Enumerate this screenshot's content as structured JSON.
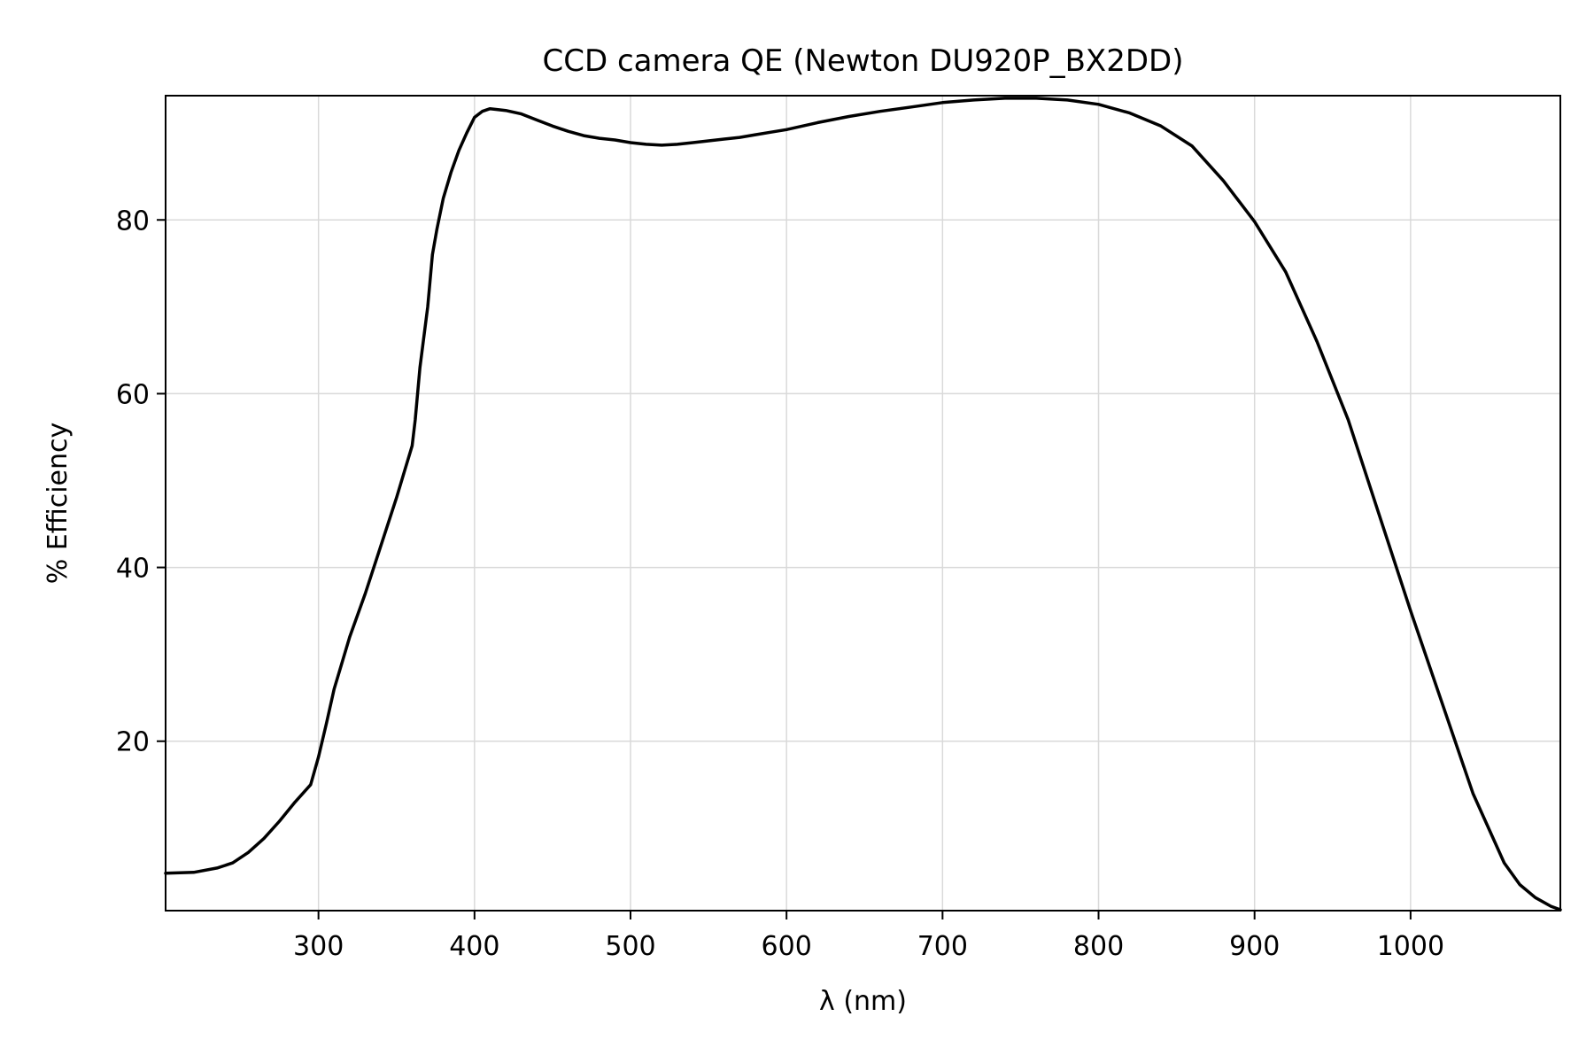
{
  "chart_data": {
    "type": "line",
    "title": "CCD camera QE (Newton DU920P_BX2DD)",
    "xlabel": "λ (nm)",
    "ylabel": "% Efficiency",
    "xlim": [
      202,
      1096
    ],
    "ylim": [
      0.5,
      94.3
    ],
    "grid": true,
    "xticks": [
      300,
      400,
      500,
      600,
      700,
      800,
      900,
      1000
    ],
    "yticks": [
      20,
      40,
      60,
      80
    ],
    "line_color": "#000000",
    "grid_color": "#d9d9d9",
    "series": [
      {
        "x": [
          202,
          220,
          235,
          245,
          255,
          265,
          275,
          285,
          295,
          300,
          305,
          310,
          315,
          320,
          330,
          340,
          350,
          355,
          360,
          362,
          365,
          370,
          373,
          376,
          380,
          385,
          390,
          395,
          400,
          405,
          410,
          420,
          430,
          440,
          450,
          460,
          470,
          480,
          490,
          500,
          510,
          520,
          530,
          540,
          550,
          560,
          570,
          580,
          590,
          600,
          620,
          640,
          660,
          680,
          700,
          720,
          740,
          760,
          780,
          800,
          820,
          840,
          860,
          880,
          900,
          920,
          940,
          960,
          980,
          1000,
          1020,
          1040,
          1060,
          1070,
          1080,
          1090,
          1096
        ],
        "y": [
          4.8,
          4.9,
          5.4,
          6.0,
          7.2,
          8.8,
          10.8,
          13.0,
          15.0,
          18.2,
          22.0,
          26.0,
          29.0,
          32.0,
          37.0,
          42.5,
          48.0,
          51.0,
          54.0,
          57.0,
          63.0,
          70.0,
          76.0,
          79.0,
          82.5,
          85.5,
          88.0,
          90.0,
          91.8,
          92.5,
          92.8,
          92.6,
          92.2,
          91.5,
          90.8,
          90.2,
          89.7,
          89.4,
          89.2,
          88.9,
          88.7,
          88.6,
          88.7,
          88.9,
          89.1,
          89.3,
          89.5,
          89.8,
          90.1,
          90.4,
          91.2,
          91.9,
          92.5,
          93.0,
          93.5,
          93.8,
          94.0,
          94.0,
          93.8,
          93.3,
          92.3,
          90.8,
          88.5,
          84.5,
          79.8,
          74.0,
          66.0,
          57.0,
          46.0,
          35.0,
          24.5,
          14.0,
          6.0,
          3.5,
          2.0,
          1.0,
          0.6
        ]
      }
    ]
  }
}
